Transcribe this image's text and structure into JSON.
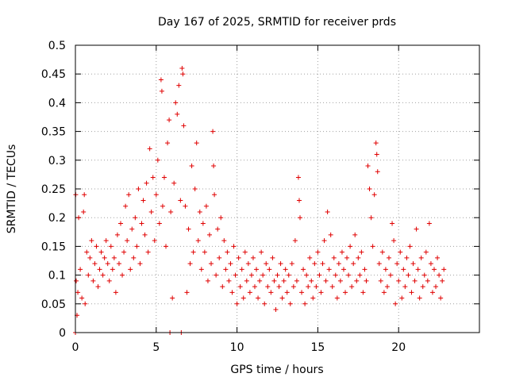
{
  "chart_data": {
    "type": "scatter",
    "title": "Day 167 of 2025, SRMTID for receiver prds",
    "xlabel": "GPS time / hours",
    "ylabel": "SRMTID / TECUs",
    "xlim": [
      0,
      25
    ],
    "ylim": [
      0,
      0.5
    ],
    "xticks": [
      0,
      5,
      10,
      15,
      20
    ],
    "xtick_labels": [
      "0",
      "5",
      "10",
      "15",
      "20"
    ],
    "yticks": [
      0,
      0.05,
      0.1,
      0.15,
      0.2,
      0.25,
      0.3,
      0.35,
      0.4,
      0.45,
      0.5
    ],
    "ytick_labels": [
      "0",
      "0.05",
      "0.1",
      "0.15",
      "0.2",
      "0.25",
      "0.3",
      "0.35",
      "0.4",
      "0.45",
      "0.5"
    ],
    "grid": true,
    "marker": "+",
    "series": [
      {
        "name": "SRMTID",
        "color": "#e00000",
        "points": [
          [
            0.0,
            0.0
          ],
          [
            0.02,
            0.24
          ],
          [
            0.05,
            0.09
          ],
          [
            0.1,
            0.03
          ],
          [
            0.15,
            0.07
          ],
          [
            0.2,
            0.2
          ],
          [
            0.3,
            0.11
          ],
          [
            0.4,
            0.06
          ],
          [
            0.5,
            0.21
          ],
          [
            0.55,
            0.24
          ],
          [
            0.6,
            0.05
          ],
          [
            0.7,
            0.14
          ],
          [
            0.8,
            0.1
          ],
          [
            0.9,
            0.13
          ],
          [
            1.0,
            0.16
          ],
          [
            1.1,
            0.09
          ],
          [
            1.2,
            0.12
          ],
          [
            1.3,
            0.15
          ],
          [
            1.4,
            0.08
          ],
          [
            1.5,
            0.11
          ],
          [
            1.6,
            0.14
          ],
          [
            1.7,
            0.1
          ],
          [
            1.8,
            0.13
          ],
          [
            1.9,
            0.16
          ],
          [
            2.0,
            0.12
          ],
          [
            2.1,
            0.09
          ],
          [
            2.2,
            0.15
          ],
          [
            2.3,
            0.11
          ],
          [
            2.4,
            0.13
          ],
          [
            2.5,
            0.07
          ],
          [
            2.6,
            0.17
          ],
          [
            2.7,
            0.12
          ],
          [
            2.8,
            0.19
          ],
          [
            2.9,
            0.1
          ],
          [
            3.0,
            0.14
          ],
          [
            3.1,
            0.22
          ],
          [
            3.2,
            0.16
          ],
          [
            3.3,
            0.24
          ],
          [
            3.4,
            0.11
          ],
          [
            3.5,
            0.18
          ],
          [
            3.6,
            0.13
          ],
          [
            3.7,
            0.2
          ],
          [
            3.8,
            0.15
          ],
          [
            3.9,
            0.25
          ],
          [
            4.0,
            0.12
          ],
          [
            4.1,
            0.19
          ],
          [
            4.2,
            0.23
          ],
          [
            4.3,
            0.17
          ],
          [
            4.4,
            0.26
          ],
          [
            4.5,
            0.14
          ],
          [
            4.6,
            0.32
          ],
          [
            4.7,
            0.21
          ],
          [
            4.8,
            0.27
          ],
          [
            4.9,
            0.16
          ],
          [
            5.0,
            0.24
          ],
          [
            5.1,
            0.3
          ],
          [
            5.2,
            0.19
          ],
          [
            5.3,
            0.44
          ],
          [
            5.35,
            0.42
          ],
          [
            5.4,
            0.22
          ],
          [
            5.5,
            0.27
          ],
          [
            5.6,
            0.15
          ],
          [
            5.7,
            0.33
          ],
          [
            5.8,
            0.37
          ],
          [
            5.85,
            0.0
          ],
          [
            5.9,
            0.21
          ],
          [
            6.0,
            0.06
          ],
          [
            6.1,
            0.26
          ],
          [
            6.2,
            0.4
          ],
          [
            6.3,
            0.38
          ],
          [
            6.4,
            0.43
          ],
          [
            6.5,
            0.23
          ],
          [
            6.55,
            0.0
          ],
          [
            6.6,
            0.46
          ],
          [
            6.65,
            0.45
          ],
          [
            6.7,
            0.36
          ],
          [
            6.8,
            0.22
          ],
          [
            6.9,
            0.07
          ],
          [
            7.0,
            0.18
          ],
          [
            7.1,
            0.12
          ],
          [
            7.2,
            0.29
          ],
          [
            7.3,
            0.14
          ],
          [
            7.4,
            0.25
          ],
          [
            7.5,
            0.33
          ],
          [
            7.6,
            0.16
          ],
          [
            7.7,
            0.21
          ],
          [
            7.8,
            0.11
          ],
          [
            7.9,
            0.19
          ],
          [
            8.0,
            0.14
          ],
          [
            8.1,
            0.22
          ],
          [
            8.2,
            0.09
          ],
          [
            8.3,
            0.17
          ],
          [
            8.4,
            0.12
          ],
          [
            8.5,
            0.35
          ],
          [
            8.55,
            0.29
          ],
          [
            8.6,
            0.24
          ],
          [
            8.7,
            0.1
          ],
          [
            8.8,
            0.18
          ],
          [
            8.9,
            0.13
          ],
          [
            9.0,
            0.2
          ],
          [
            9.1,
            0.08
          ],
          [
            9.2,
            0.16
          ],
          [
            9.3,
            0.11
          ],
          [
            9.4,
            0.14
          ],
          [
            9.5,
            0.09
          ],
          [
            9.6,
            0.12
          ],
          [
            9.7,
            0.07
          ],
          [
            9.8,
            0.15
          ],
          [
            9.9,
            0.1
          ],
          [
            10.0,
            0.05
          ],
          [
            10.1,
            0.13
          ],
          [
            10.2,
            0.08
          ],
          [
            10.3,
            0.11
          ],
          [
            10.4,
            0.06
          ],
          [
            10.5,
            0.14
          ],
          [
            10.6,
            0.09
          ],
          [
            10.7,
            0.12
          ],
          [
            10.8,
            0.07
          ],
          [
            10.9,
            0.1
          ],
          [
            11.0,
            0.13
          ],
          [
            11.1,
            0.08
          ],
          [
            11.2,
            0.11
          ],
          [
            11.3,
            0.06
          ],
          [
            11.4,
            0.09
          ],
          [
            11.5,
            0.14
          ],
          [
            11.6,
            0.1
          ],
          [
            11.7,
            0.05
          ],
          [
            11.8,
            0.12
          ],
          [
            11.9,
            0.08
          ],
          [
            12.0,
            0.11
          ],
          [
            12.1,
            0.07
          ],
          [
            12.2,
            0.13
          ],
          [
            12.3,
            0.09
          ],
          [
            12.4,
            0.04
          ],
          [
            12.5,
            0.1
          ],
          [
            12.6,
            0.08
          ],
          [
            12.7,
            0.12
          ],
          [
            12.8,
            0.06
          ],
          [
            12.9,
            0.09
          ],
          [
            13.0,
            0.11
          ],
          [
            13.1,
            0.07
          ],
          [
            13.2,
            0.1
          ],
          [
            13.3,
            0.05
          ],
          [
            13.4,
            0.12
          ],
          [
            13.5,
            0.08
          ],
          [
            13.6,
            0.16
          ],
          [
            13.7,
            0.09
          ],
          [
            13.8,
            0.27
          ],
          [
            13.85,
            0.23
          ],
          [
            13.9,
            0.2
          ],
          [
            14.0,
            0.07
          ],
          [
            14.1,
            0.11
          ],
          [
            14.2,
            0.05
          ],
          [
            14.3,
            0.1
          ],
          [
            14.4,
            0.08
          ],
          [
            14.5,
            0.13
          ],
          [
            14.6,
            0.09
          ],
          [
            14.7,
            0.06
          ],
          [
            14.8,
            0.12
          ],
          [
            14.9,
            0.08
          ],
          [
            15.0,
            0.14
          ],
          [
            15.1,
            0.1
          ],
          [
            15.2,
            0.07
          ],
          [
            15.3,
            0.12
          ],
          [
            15.4,
            0.16
          ],
          [
            15.5,
            0.09
          ],
          [
            15.6,
            0.21
          ],
          [
            15.7,
            0.11
          ],
          [
            15.8,
            0.17
          ],
          [
            15.9,
            0.08
          ],
          [
            16.0,
            0.13
          ],
          [
            16.1,
            0.1
          ],
          [
            16.2,
            0.06
          ],
          [
            16.3,
            0.12
          ],
          [
            16.4,
            0.09
          ],
          [
            16.5,
            0.14
          ],
          [
            16.6,
            0.11
          ],
          [
            16.7,
            0.07
          ],
          [
            16.8,
            0.13
          ],
          [
            16.9,
            0.1
          ],
          [
            17.0,
            0.15
          ],
          [
            17.1,
            0.08
          ],
          [
            17.2,
            0.12
          ],
          [
            17.3,
            0.17
          ],
          [
            17.4,
            0.09
          ],
          [
            17.5,
            0.13
          ],
          [
            17.6,
            0.1
          ],
          [
            17.7,
            0.14
          ],
          [
            17.8,
            0.07
          ],
          [
            17.9,
            0.11
          ],
          [
            18.0,
            0.09
          ],
          [
            18.1,
            0.29
          ],
          [
            18.2,
            0.25
          ],
          [
            18.3,
            0.2
          ],
          [
            18.4,
            0.15
          ],
          [
            18.5,
            0.24
          ],
          [
            18.6,
            0.33
          ],
          [
            18.65,
            0.31
          ],
          [
            18.7,
            0.28
          ],
          [
            18.8,
            0.12
          ],
          [
            18.9,
            0.09
          ],
          [
            19.0,
            0.14
          ],
          [
            19.1,
            0.07
          ],
          [
            19.2,
            0.11
          ],
          [
            19.3,
            0.08
          ],
          [
            19.4,
            0.13
          ],
          [
            19.5,
            0.1
          ],
          [
            19.6,
            0.19
          ],
          [
            19.7,
            0.16
          ],
          [
            19.8,
            0.05
          ],
          [
            19.9,
            0.12
          ],
          [
            20.0,
            0.09
          ],
          [
            20.1,
            0.14
          ],
          [
            20.2,
            0.06
          ],
          [
            20.3,
            0.11
          ],
          [
            20.4,
            0.08
          ],
          [
            20.5,
            0.13
          ],
          [
            20.6,
            0.1
          ],
          [
            20.7,
            0.15
          ],
          [
            20.8,
            0.07
          ],
          [
            20.9,
            0.12
          ],
          [
            21.0,
            0.09
          ],
          [
            21.1,
            0.18
          ],
          [
            21.2,
            0.11
          ],
          [
            21.3,
            0.06
          ],
          [
            21.4,
            0.13
          ],
          [
            21.5,
            0.08
          ],
          [
            21.6,
            0.1
          ],
          [
            21.7,
            0.14
          ],
          [
            21.8,
            0.09
          ],
          [
            21.9,
            0.19
          ],
          [
            22.0,
            0.12
          ],
          [
            22.1,
            0.07
          ],
          [
            22.2,
            0.11
          ],
          [
            22.3,
            0.08
          ],
          [
            22.4,
            0.13
          ],
          [
            22.5,
            0.1
          ],
          [
            22.6,
            0.06
          ],
          [
            22.7,
            0.09
          ],
          [
            22.8,
            0.11
          ]
        ]
      }
    ]
  }
}
